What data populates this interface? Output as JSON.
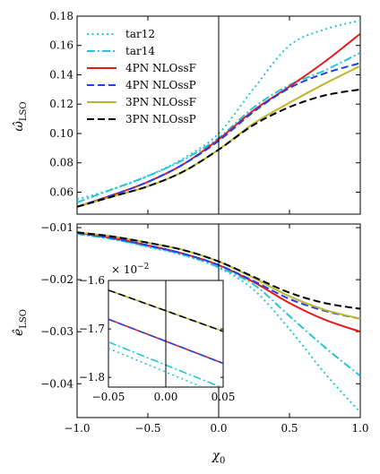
{
  "chart_data": [
    {
      "type": "line",
      "ylabel": "ω̂",
      "ylabel_sub": "LSO",
      "xlim": [
        -1.0,
        1.0
      ],
      "ylim": [
        0.045,
        0.18
      ],
      "yticks": [
        "0.06",
        "0.08",
        "0.10",
        "0.12",
        "0.14",
        "0.16",
        "0.18"
      ],
      "ytick_values": [
        0.06,
        0.08,
        0.1,
        0.12,
        0.14,
        0.16,
        0.18
      ],
      "legend_position": "top-left",
      "vertical_line_at": 0.0,
      "series": [
        {
          "name": "tar12",
          "color": "#22c5d6",
          "dash": "dotted",
          "x": [
            -1.0,
            -0.75,
            -0.5,
            -0.25,
            0.0,
            0.25,
            0.5,
            0.75,
            1.0
          ],
          "y": [
            0.055,
            0.062,
            0.071,
            0.083,
            0.1,
            0.131,
            0.16,
            0.171,
            0.177
          ]
        },
        {
          "name": "tar14",
          "color": "#22c5d6",
          "dash": "dashdot",
          "x": [
            -1.0,
            -0.75,
            -0.5,
            -0.25,
            0.0,
            0.25,
            0.5,
            0.75,
            1.0
          ],
          "y": [
            0.053,
            0.062,
            0.071,
            0.082,
            0.097,
            0.118,
            0.133,
            0.143,
            0.155
          ]
        },
        {
          "name": "4PN NLOssF",
          "color": "#e31a1c",
          "dash": "solid",
          "x": [
            -1.0,
            -0.75,
            -0.5,
            -0.25,
            0.0,
            0.25,
            0.5,
            0.75,
            1.0
          ],
          "y": [
            0.05,
            0.058,
            0.067,
            0.079,
            0.096,
            0.116,
            0.132,
            0.149,
            0.168
          ]
        },
        {
          "name": "4PN NLOssP",
          "color": "#1f3ff0",
          "dash": "dashed",
          "x": [
            -1.0,
            -0.75,
            -0.5,
            -0.25,
            0.0,
            0.25,
            0.5,
            0.75,
            1.0
          ],
          "y": [
            0.05,
            0.058,
            0.067,
            0.079,
            0.095,
            0.115,
            0.131,
            0.141,
            0.148
          ]
        },
        {
          "name": "3PN NLOssF",
          "color": "#b8b82a",
          "dash": "solid",
          "x": [
            -1.0,
            -0.75,
            -0.5,
            -0.25,
            0.0,
            0.25,
            0.5,
            0.75,
            1.0
          ],
          "y": [
            0.05,
            0.057,
            0.064,
            0.074,
            0.089,
            0.107,
            0.121,
            0.134,
            0.146
          ]
        },
        {
          "name": "3PN NLOssP",
          "color": "#000000",
          "dash": "dashed",
          "x": [
            -1.0,
            -0.75,
            -0.5,
            -0.25,
            0.0,
            0.25,
            0.5,
            0.75,
            1.0
          ],
          "y": [
            0.05,
            0.057,
            0.064,
            0.074,
            0.089,
            0.106,
            0.118,
            0.126,
            0.13
          ]
        }
      ]
    },
    {
      "type": "line",
      "ylabel": "ê",
      "ylabel_sub": "LSO",
      "xlabel": "χ",
      "xlabel_sub": "0",
      "xlim": [
        -1.0,
        1.0
      ],
      "ylim": [
        -0.0465,
        -0.0093
      ],
      "xticks": [
        "−1.0",
        "−0.5",
        "0.0",
        "0.5",
        "1.0"
      ],
      "xtick_values": [
        -1.0,
        -0.5,
        0.0,
        0.5,
        1.0
      ],
      "yticks": [
        "−0.01",
        "−0.02",
        "−0.03",
        "−0.04"
      ],
      "ytick_values": [
        -0.01,
        -0.02,
        -0.03,
        -0.04
      ],
      "vertical_line_at": 0.0,
      "series": [
        {
          "name": "tar12",
          "color": "#22c5d6",
          "dash": "dotted",
          "x": [
            -1.0,
            -0.75,
            -0.5,
            -0.25,
            0.0,
            0.25,
            0.5,
            0.75,
            1.0
          ],
          "y": [
            -0.0112,
            -0.0122,
            -0.0137,
            -0.0153,
            -0.0177,
            -0.022,
            -0.0295,
            -0.038,
            -0.0455
          ]
        },
        {
          "name": "tar14",
          "color": "#22c5d6",
          "dash": "dashdot",
          "x": [
            -1.0,
            -0.75,
            -0.5,
            -0.25,
            0.0,
            0.25,
            0.5,
            0.75,
            1.0
          ],
          "y": [
            -0.0112,
            -0.0122,
            -0.0136,
            -0.0152,
            -0.0176,
            -0.021,
            -0.027,
            -0.033,
            -0.0385
          ]
        },
        {
          "name": "4PN NLOssF",
          "color": "#e31a1c",
          "dash": "solid",
          "x": [
            -1.0,
            -0.75,
            -0.5,
            -0.25,
            0.0,
            0.25,
            0.5,
            0.75,
            1.0
          ],
          "y": [
            -0.011,
            -0.012,
            -0.0134,
            -0.015,
            -0.0172,
            -0.0205,
            -0.0245,
            -0.0277,
            -0.03
          ]
        },
        {
          "name": "4PN NLOssP",
          "color": "#1f3ff0",
          "dash": "dashed",
          "x": [
            -1.0,
            -0.75,
            -0.5,
            -0.25,
            0.0,
            0.25,
            0.5,
            0.75,
            1.0
          ],
          "y": [
            -0.011,
            -0.012,
            -0.0134,
            -0.015,
            -0.0172,
            -0.0203,
            -0.0237,
            -0.026,
            -0.0275
          ]
        },
        {
          "name": "3PN NLOssF",
          "color": "#b8b82a",
          "dash": "solid",
          "x": [
            -1.0,
            -0.75,
            -0.5,
            -0.25,
            0.0,
            0.25,
            0.5,
            0.75,
            1.0
          ],
          "y": [
            -0.0109,
            -0.0117,
            -0.0129,
            -0.0143,
            -0.0165,
            -0.0197,
            -0.0232,
            -0.0258,
            -0.0275
          ]
        },
        {
          "name": "3PN NLOssP",
          "color": "#000000",
          "dash": "dashed",
          "x": [
            -1.0,
            -0.75,
            -0.5,
            -0.25,
            0.0,
            0.25,
            0.5,
            0.75,
            1.0
          ],
          "y": [
            -0.0109,
            -0.0117,
            -0.0129,
            -0.0143,
            -0.0165,
            -0.0195,
            -0.0225,
            -0.0245,
            -0.0256
          ]
        }
      ]
    },
    {
      "type": "line",
      "inset": true,
      "xlim": [
        -0.05,
        0.05
      ],
      "ylim": [
        -0.0182,
        -0.016
      ],
      "xticks": [
        "−0.05",
        "0.00",
        "0.05"
      ],
      "xtick_values": [
        -0.05,
        0.0,
        0.05
      ],
      "yticks": [
        "−1.6",
        "−1.7",
        "−1.8"
      ],
      "ytick_values": [
        -0.016,
        -0.017,
        -0.018
      ],
      "y_multiplier": "× 10",
      "y_multiplier_exp": "−2",
      "vertical_line_at": 0.0,
      "series": [
        {
          "name": "tar12",
          "color": "#22c5d6",
          "dash": "dotted",
          "x": [
            -0.05,
            0.05
          ],
          "y": [
            -0.0174,
            -0.01838
          ]
        },
        {
          "name": "tar14",
          "color": "#22c5d6",
          "dash": "dashdot",
          "x": [
            -0.05,
            0.05
          ],
          "y": [
            -0.01727,
            -0.01822
          ]
        },
        {
          "name": "4PN NLOssF",
          "color": "#e31a1c",
          "dash": "solid",
          "x": [
            -0.05,
            0.05
          ],
          "y": [
            -0.0168,
            -0.01771
          ]
        },
        {
          "name": "4PN NLOssP",
          "color": "#1f3ff0",
          "dash": "dashed",
          "x": [
            -0.05,
            0.05
          ],
          "y": [
            -0.0168,
            -0.01771
          ]
        },
        {
          "name": "3PN NLOssF",
          "color": "#b8b82a",
          "dash": "solid",
          "x": [
            -0.05,
            0.05
          ],
          "y": [
            -0.0162,
            -0.01705
          ]
        },
        {
          "name": "3PN NLOssP",
          "color": "#000000",
          "dash": "dashed",
          "x": [
            -0.05,
            0.05
          ],
          "y": [
            -0.0162,
            -0.01705
          ]
        }
      ]
    }
  ]
}
